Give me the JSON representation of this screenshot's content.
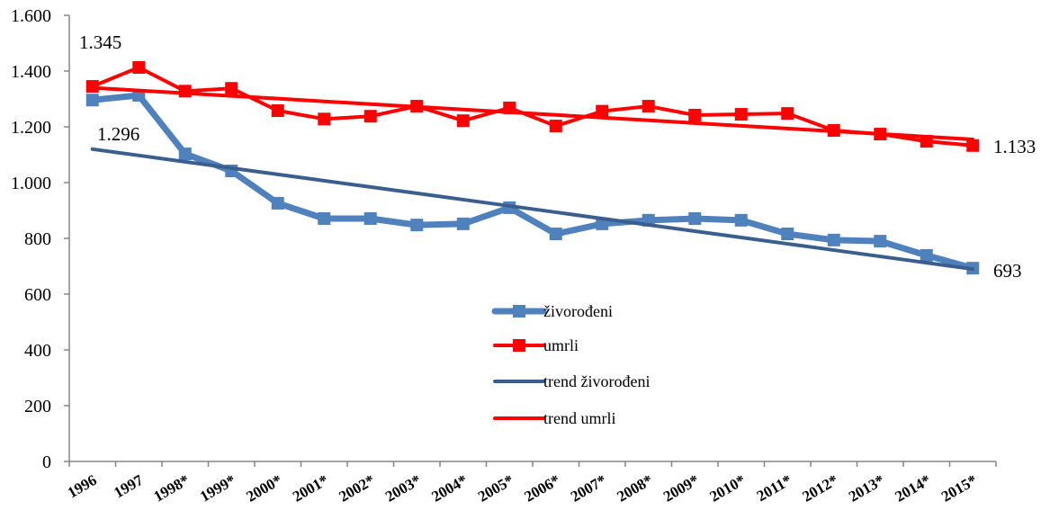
{
  "chart_data": {
    "type": "line",
    "title": "",
    "xlabel": "",
    "ylabel": "",
    "ylim": [
      0,
      1600
    ],
    "yticks": [
      0,
      200,
      400,
      600,
      800,
      1000,
      1200,
      1400,
      1600
    ],
    "ytick_labels": [
      "0",
      "200",
      "400",
      "600",
      "800",
      "1.000",
      "1.200",
      "1.400",
      "1.600"
    ],
    "grid": false,
    "legend_placement": "center",
    "categories": [
      "1996",
      "1997",
      "1998*",
      "1999*",
      "2000*",
      "2001*",
      "2002*",
      "2003*",
      "2004*",
      "2005*",
      "2006*",
      "2007*",
      "2008*",
      "2009*",
      "2010*",
      "2011*",
      "2012*",
      "2013*",
      "2014*",
      "2015*"
    ],
    "series": [
      {
        "name": "živorođeni",
        "color": "#4F81BD",
        "marker": "square",
        "values": [
          1296,
          1313,
          1103,
          1042,
          926,
          871,
          871,
          848,
          852,
          910,
          816,
          852,
          865,
          871,
          865,
          816,
          794,
          790,
          739,
          693
        ]
      },
      {
        "name": "umrli",
        "color": "#FF0000",
        "marker": "square",
        "values": [
          1345,
          1413,
          1328,
          1338,
          1258,
          1228,
          1238,
          1274,
          1222,
          1268,
          1203,
          1256,
          1274,
          1242,
          1245,
          1248,
          1187,
          1174,
          1148,
          1133
        ]
      },
      {
        "name": "trend živorođeni",
        "color": "#3A5F8F",
        "marker": "none",
        "trend": true,
        "values": [
          1120,
          1097.4,
          1074.7,
          1052.1,
          1029.5,
          1006.8,
          984.2,
          961.6,
          938.9,
          916.3,
          893.7,
          871.1,
          848.4,
          825.8,
          803.2,
          780.5,
          757.9,
          735.3,
          712.6,
          690
        ]
      },
      {
        "name": "trend umrli",
        "color": "#FF0000",
        "marker": "none",
        "trend": true,
        "values": [
          1340,
          1330.3,
          1320.5,
          1310.8,
          1301.1,
          1291.3,
          1281.6,
          1271.8,
          1262.1,
          1252.4,
          1242.6,
          1232.9,
          1223.2,
          1213.4,
          1203.7,
          1193.9,
          1184.2,
          1174.5,
          1164.7,
          1155
        ]
      }
    ],
    "annotations": [
      {
        "text": "1.345",
        "series": "umrli",
        "category": "1996"
      },
      {
        "text": "1.296",
        "series": "živorođeni",
        "category": "1996"
      },
      {
        "text": "1.133",
        "series": "umrli",
        "category": "2015*"
      },
      {
        "text": "693",
        "series": "živorođeni",
        "category": "2015*"
      }
    ]
  }
}
